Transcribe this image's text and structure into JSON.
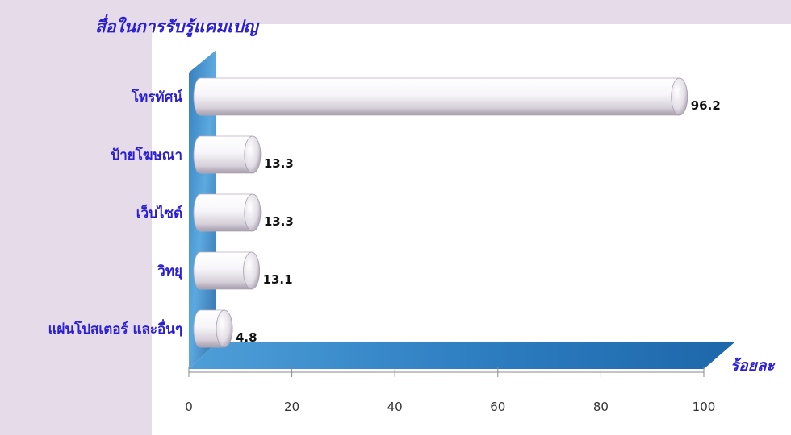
{
  "chart_data": {
    "type": "bar",
    "orientation": "horizontal",
    "title": "สื่อในการรับรู้แคมเปญ",
    "xlabel": "ร้อยละ",
    "ylabel": "",
    "categories": [
      "โทรทัศน์",
      "ป้ายโฆษณา",
      "เว็บไซต์",
      "วิทยุ",
      "แผ่นโปสเตอร์ และอื่นๆ"
    ],
    "values": [
      96.2,
      13.3,
      13.3,
      13.1,
      4.8
    ],
    "value_labels": [
      "96.2",
      "13.3",
      "13.3",
      "13.1",
      "4.8"
    ],
    "xlim": [
      0,
      100
    ],
    "xticks": [
      "0",
      "20",
      "40",
      "60",
      "80",
      "100"
    ],
    "grid": false,
    "legend": "none",
    "colors": {
      "background": "#e6dbe8",
      "plot_area": "#ffffff",
      "bar": "#f4f1f6",
      "label_text": "#2b1fd6",
      "wall": "#2f7fc3"
    }
  }
}
